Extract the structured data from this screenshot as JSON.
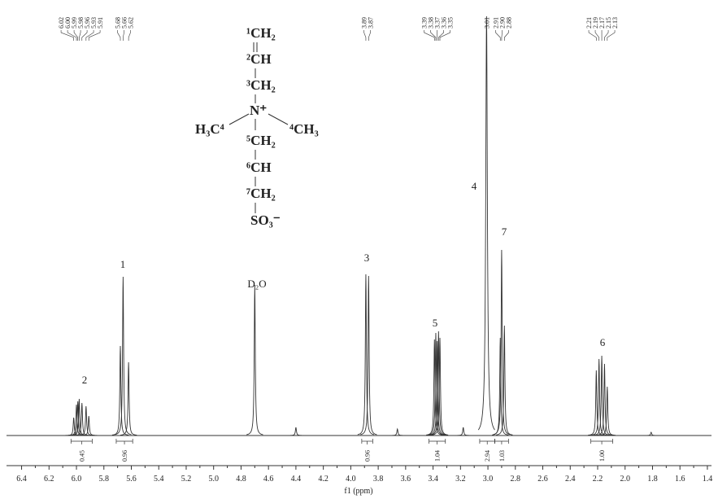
{
  "chart_data": {
    "type": "spectrum",
    "x_label": "f1 (ppm)",
    "xlim": [
      6.51,
      1.37
    ],
    "ylim": [
      0,
      520
    ],
    "xticks": [
      6.4,
      6.2,
      {
        "value": 6.0,
        "label": "6.0"
      },
      5.8,
      5.6,
      5.4,
      5.2,
      {
        "value": 5.0,
        "label": "5.0"
      },
      4.8,
      4.6,
      4.4,
      4.2,
      {
        "value": 4.0,
        "label": "4.0"
      },
      3.8,
      3.6,
      3.4,
      3.2,
      {
        "value": 3.0,
        "label": "3.0"
      },
      2.8,
      2.6,
      2.4,
      2.2,
      {
        "value": 2.0,
        "label": "2.0"
      },
      1.8,
      1.6,
      1.4
    ],
    "color": "#333333",
    "x": [
      6.02,
      6.0,
      5.99,
      5.98,
      5.96,
      5.93,
      5.91,
      5.68,
      5.66,
      5.62,
      4.7,
      4.4,
      3.89,
      3.87,
      3.66,
      3.39,
      3.38,
      3.37,
      3.36,
      3.35,
      3.18,
      3.01,
      2.91,
      2.9,
      2.88,
      2.21,
      2.19,
      2.17,
      2.15,
      2.13,
      1.81
    ],
    "values": [
      22,
      38,
      42,
      45,
      40,
      36,
      24,
      110,
      195,
      90,
      185,
      10,
      198,
      196,
      8,
      118,
      126,
      116,
      128,
      120,
      10,
      515,
      120,
      228,
      135,
      80,
      94,
      98,
      88,
      60,
      4
    ],
    "peak_labels": [
      6.02,
      {
        "value": 6.0,
        "label": "6.00"
      },
      5.99,
      5.98,
      5.96,
      5.93,
      5.91,
      5.68,
      5.66,
      5.62,
      3.89,
      3.87,
      3.39,
      3.38,
      3.37,
      3.36,
      3.35,
      3.01,
      2.91,
      {
        "value": 2.9,
        "label": "2.90"
      },
      2.88,
      2.21,
      2.19,
      2.17,
      2.15,
      2.13
    ],
    "integrals": {
      "values": [
        0.45,
        0.96,
        0.96,
        1.04,
        2.94,
        1.03,
        {
          "value": 1.0,
          "label": "1.00"
        }
      ],
      "ranges": [
        [
          6.04,
          5.885
        ],
        [
          5.71,
          5.59
        ],
        [
          3.92,
          3.84
        ],
        [
          3.43,
          3.31
        ],
        [
          3.06,
          2.95
        ],
        [
          2.95,
          2.85
        ],
        [
          2.25,
          2.09
        ]
      ]
    },
    "annotations": [
      "2",
      "1",
      "D₂O",
      "3",
      "5",
      "4",
      "7",
      "6"
    ]
  },
  "structure": {
    "atoms": [
      "¹CH₂",
      "²CH",
      "³CH₂",
      "N⁺",
      "H₃C⁴",
      "⁴CH₃",
      "⁵CH₂",
      "⁶CH",
      "⁷CH₂",
      "SO₃⁻"
    ]
  }
}
